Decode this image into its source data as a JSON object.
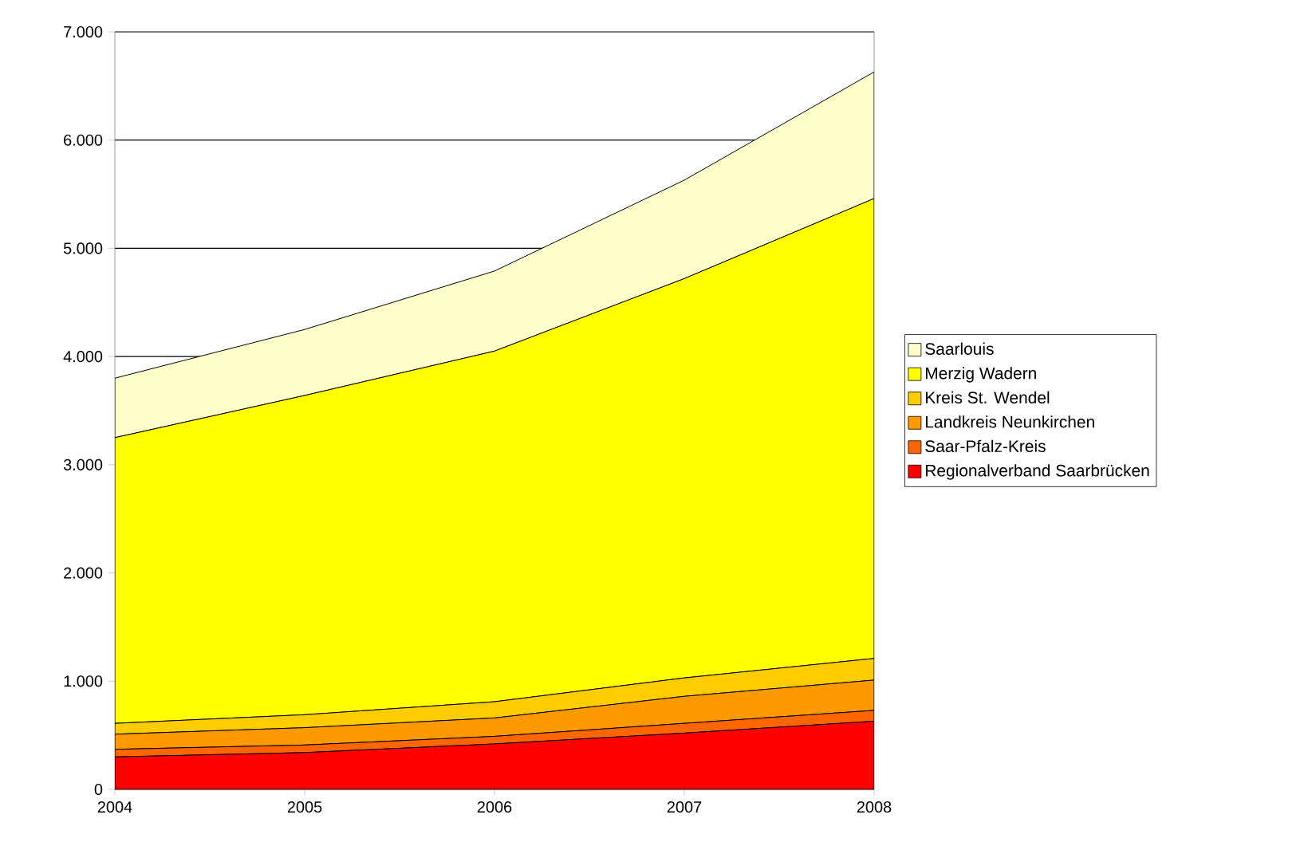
{
  "chart_data": {
    "type": "area",
    "stacked": true,
    "grid": "y",
    "legend": "right",
    "x": [
      2004,
      2005,
      2006,
      2007,
      2008
    ],
    "xlim": [
      2004,
      2008
    ],
    "xticks": [
      2004,
      2005,
      2006,
      2007,
      2008
    ],
    "ylim": [
      0,
      7000
    ],
    "yticks": [
      0,
      {
        "value": 1000,
        "label": "1.000"
      },
      {
        "value": 2000,
        "label": "2.000"
      },
      {
        "value": 3000,
        "label": "3.000"
      },
      {
        "value": 4000,
        "label": "4.000"
      },
      {
        "value": 5000,
        "label": "5.000"
      },
      {
        "value": 6000,
        "label": "6.000"
      },
      {
        "value": 7000,
        "label": "7.000"
      }
    ],
    "series": [
      {
        "name": "Regionalverband Saarbrücken",
        "color": "#ff0000",
        "values": [
          300,
          340,
          420,
          520,
          630
        ]
      },
      {
        "name": "Saar-Pfalz-Kreis",
        "color": "#ff6600",
        "values": [
          70,
          70,
          70,
          90,
          100
        ]
      },
      {
        "name": "Landkreis Neunkirchen",
        "color": "#ff9900",
        "values": [
          140,
          160,
          170,
          250,
          280
        ]
      },
      {
        "name": "Kreis St. Wendel",
        "color": "#ffcc00",
        "values": [
          100,
          120,
          150,
          170,
          200
        ]
      },
      {
        "name": "Merzig Wadern",
        "color": "#ffff00",
        "values": [
          2640,
          2950,
          3240,
          3690,
          4250
        ]
      },
      {
        "name": "Saarlouis",
        "color": "#ffffcc",
        "values": [
          550,
          610,
          740,
          910,
          1170
        ]
      }
    ]
  }
}
